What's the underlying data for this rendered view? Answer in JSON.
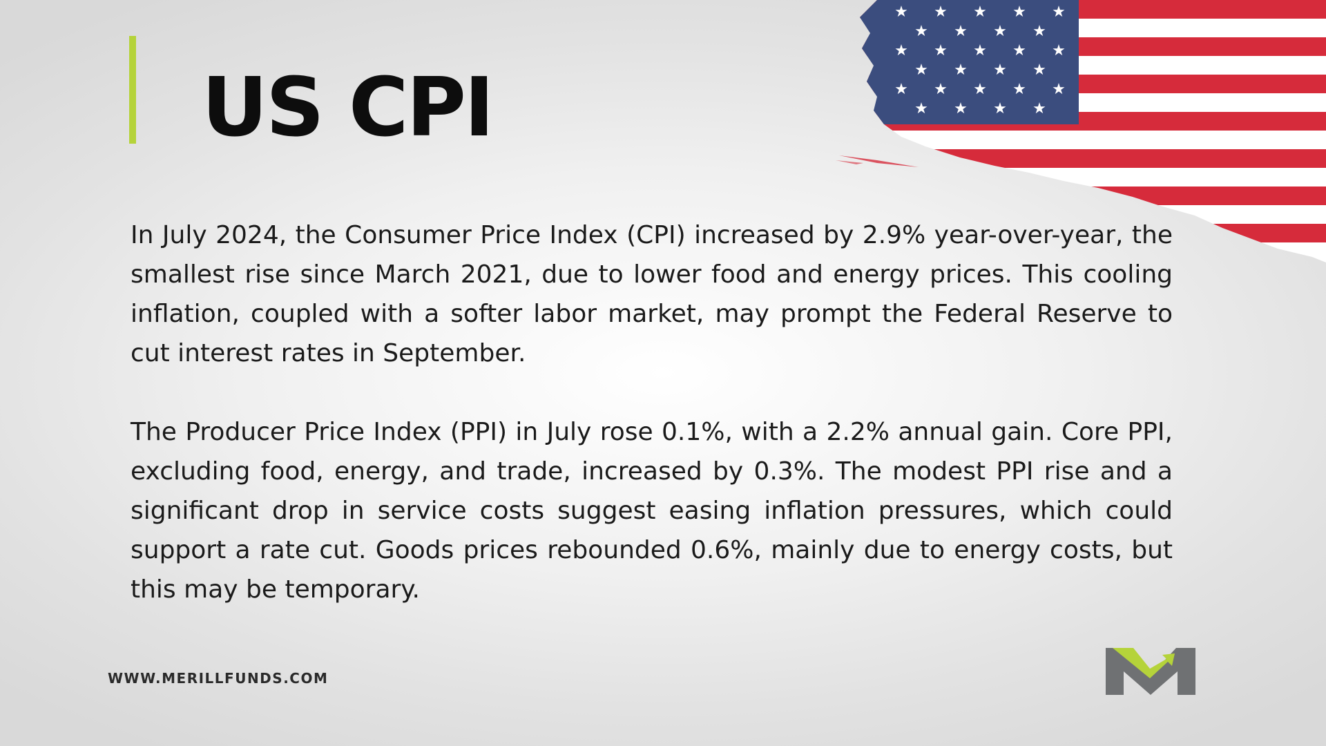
{
  "slide": {
    "title": "US CPI",
    "paragraphs": [
      "In July 2024, the Consumer Price Index (CPI) increased by 2.9% year-over-year, the smallest rise since March 2021, due to lower food and energy prices. This cooling inflation, coupled with a softer labor market, may prompt the Federal Reserve to cut interest rates in September.",
      "The Producer Price Index (PPI) in July rose 0.1%, with a 2.2% annual gain. Core PPI, excluding food, energy, and trade, increased by 0.3%. The modest PPI rise and a significant drop in service costs suggest easing inflation pressures, which could support a rate cut. Goods prices rebounded 0.6%, mainly due to energy costs, but this may be temporary."
    ],
    "website": "WWW.MERILLFUNDS.COM"
  },
  "icons": {
    "flag": "us-flag-icon",
    "logo": "merill-m-logo-icon"
  },
  "colors": {
    "accent": "#b5d33a",
    "logo_grey": "#6f7173",
    "logo_green": "#b5d33a",
    "flag_red": "#d62b3b",
    "flag_blue": "#3b4d7e",
    "background": "#eeeeee"
  }
}
